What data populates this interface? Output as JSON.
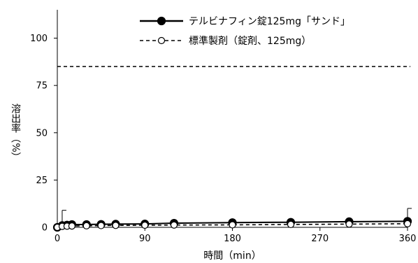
{
  "chart_data": {
    "type": "line",
    "xlabel": "時間（min）",
    "ylabel": "溶出率（%）",
    "xlim": [
      0,
      360
    ],
    "ylim": [
      0,
      110
    ],
    "x_ticks": [
      0,
      90,
      180,
      270,
      360
    ],
    "y_ticks": [
      0,
      25,
      50,
      75,
      100
    ],
    "grid": false,
    "legend_position": "top-right",
    "series": [
      {
        "name": "テルビナフィン錠125mg「サンド」",
        "line_style": "solid",
        "marker": "filled-circle",
        "color": "#000000",
        "x": [
          0,
          5,
          10,
          15,
          30,
          45,
          60,
          90,
          120,
          180,
          240,
          300,
          360
        ],
        "y": [
          0,
          1.0,
          1.2,
          1.5,
          1.5,
          1.6,
          1.7,
          1.8,
          2.2,
          2.5,
          2.7,
          3.0,
          3.2
        ],
        "error_bars": [
          {
            "x": 5,
            "upper": 9
          },
          {
            "x": 360,
            "upper": 10
          }
        ]
      },
      {
        "name": "標準製剤（錠剤、125mg）",
        "line_style": "dashed",
        "marker": "open-circle",
        "color": "#000000",
        "x": [
          0,
          5,
          10,
          15,
          30,
          45,
          60,
          90,
          120,
          180,
          240,
          300,
          360
        ],
        "y": [
          0,
          0.5,
          0.6,
          0.7,
          0.8,
          0.9,
          1.0,
          1.1,
          1.2,
          1.3,
          1.5,
          1.7,
          1.9
        ]
      }
    ],
    "reference_lines": [
      {
        "y": 85,
        "style": "dashed"
      }
    ]
  }
}
